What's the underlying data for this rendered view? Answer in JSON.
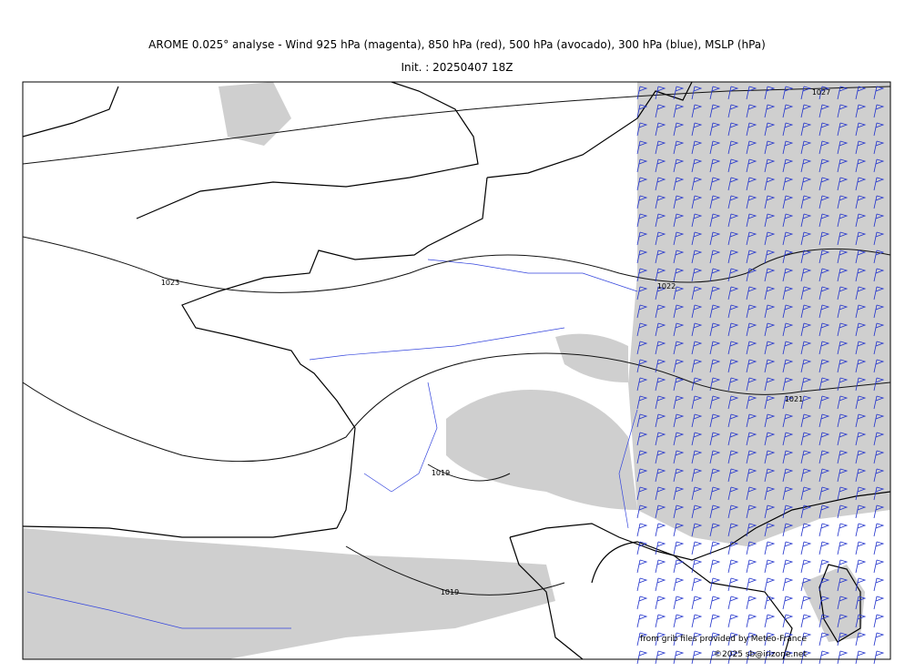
{
  "header": {
    "title": "AROME 0.025° analyse - Wind 925 hPa (magenta), 850 hPa (red), 500 hPa (avocado), 300 hPa (blue), MSLP (hPa)",
    "init": "Init. : 20250407 18Z"
  },
  "isobar_labels": [
    "1027",
    "1023",
    "1022",
    "1021",
    "1019",
    "1019"
  ],
  "credits": [
    "from grib files provided by Meteo-France",
    "©2025 sb@irizone.net"
  ]
}
